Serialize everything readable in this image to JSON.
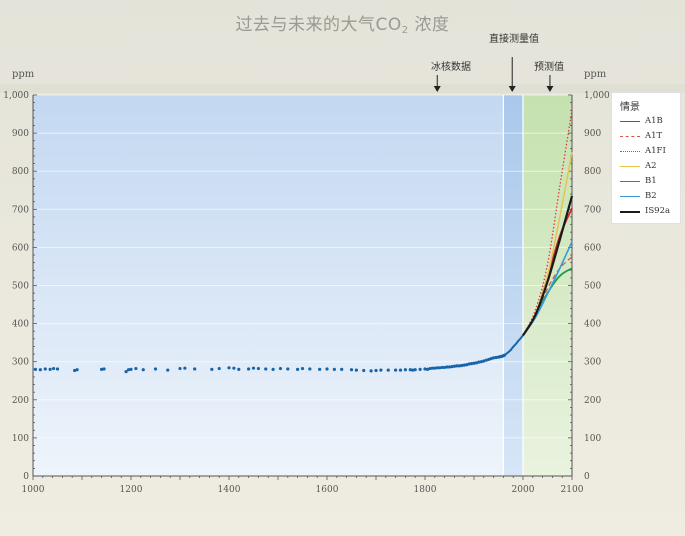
{
  "title": {
    "main": "过去与未来的大气CO",
    "sub": "2",
    "suffix": " 浓度"
  },
  "annotations": {
    "ice_core": "冰核数据",
    "direct": "直接测量值",
    "forecast": "预测值"
  },
  "chart_data": {
    "type": "line",
    "title": "过去与未来的大气CO2 浓度",
    "ylabel_left": "ppm",
    "ylabel_right": "ppm",
    "xlim": [
      1000,
      2100
    ],
    "ylim": [
      0,
      1000
    ],
    "x_ticks": [
      "1000",
      "1200",
      "1400",
      "1600",
      "1800",
      "2000",
      "2100"
    ],
    "y_ticks": [
      "0",
      "100",
      "200",
      "300",
      "400",
      "500",
      "600",
      "700",
      "800",
      "900",
      "1,000"
    ],
    "y_ticks_right": [
      "0",
      "100",
      "200",
      "300",
      "400",
      "500",
      "600",
      "700",
      "800",
      "900",
      "1,000"
    ],
    "regions": [
      {
        "label": "冰核数据",
        "x_range": [
          1000,
          1960
        ],
        "color": "#c8dcf2"
      },
      {
        "label": "直接测量值",
        "x_range": [
          1960,
          2000
        ],
        "color": "#aac9ec"
      },
      {
        "label": "预测值",
        "x_range": [
          2000,
          2100
        ],
        "color": "#c5e2b0"
      }
    ],
    "ice_core_points": [
      [
        1005,
        280
      ],
      [
        1015,
        279
      ],
      [
        1025,
        281
      ],
      [
        1035,
        280
      ],
      [
        1042,
        282
      ],
      [
        1050,
        281
      ],
      [
        1085,
        277
      ],
      [
        1090,
        279
      ],
      [
        1140,
        280
      ],
      [
        1145,
        281
      ],
      [
        1190,
        274
      ],
      [
        1195,
        279
      ],
      [
        1200,
        280
      ],
      [
        1210,
        282
      ],
      [
        1225,
        279
      ],
      [
        1250,
        281
      ],
      [
        1275,
        278
      ],
      [
        1300,
        282
      ],
      [
        1310,
        283
      ],
      [
        1330,
        281
      ],
      [
        1365,
        280
      ],
      [
        1380,
        282
      ],
      [
        1400,
        284
      ],
      [
        1410,
        283
      ],
      [
        1420,
        280
      ],
      [
        1440,
        281
      ],
      [
        1450,
        283
      ],
      [
        1460,
        282
      ],
      [
        1475,
        281
      ],
      [
        1490,
        280
      ],
      [
        1505,
        282
      ],
      [
        1520,
        281
      ],
      [
        1540,
        280
      ],
      [
        1550,
        282
      ],
      [
        1565,
        281
      ],
      [
        1585,
        280
      ],
      [
        1600,
        281
      ],
      [
        1615,
        280
      ],
      [
        1630,
        280
      ],
      [
        1650,
        279
      ],
      [
        1660,
        278
      ],
      [
        1675,
        277
      ],
      [
        1690,
        276
      ],
      [
        1700,
        277
      ],
      [
        1710,
        278
      ],
      [
        1725,
        278
      ],
      [
        1740,
        278
      ],
      [
        1750,
        278
      ],
      [
        1760,
        279
      ],
      [
        1770,
        279
      ],
      [
        1775,
        278
      ],
      [
        1780,
        279
      ],
      [
        1790,
        280
      ],
      [
        1800,
        281
      ],
      [
        1805,
        280
      ],
      [
        1810,
        282
      ],
      [
        1815,
        283
      ],
      [
        1820,
        283
      ],
      [
        1825,
        284
      ],
      [
        1830,
        284
      ],
      [
        1835,
        285
      ],
      [
        1840,
        285
      ],
      [
        1845,
        286
      ],
      [
        1850,
        286
      ],
      [
        1855,
        287
      ],
      [
        1860,
        288
      ],
      [
        1865,
        289
      ],
      [
        1870,
        289
      ],
      [
        1875,
        290
      ],
      [
        1880,
        291
      ],
      [
        1885,
        292
      ],
      [
        1890,
        294
      ],
      [
        1895,
        295
      ],
      [
        1900,
        296
      ],
      [
        1905,
        297
      ],
      [
        1910,
        299
      ],
      [
        1915,
        300
      ],
      [
        1920,
        302
      ],
      [
        1925,
        304
      ],
      [
        1930,
        306
      ],
      [
        1935,
        308
      ],
      [
        1940,
        310
      ],
      [
        1945,
        311
      ],
      [
        1950,
        312
      ],
      [
        1953,
        313
      ],
      [
        1956,
        314
      ],
      [
        1959,
        315
      ],
      [
        1962,
        317
      ]
    ],
    "direct_measurement": {
      "x": [
        1958,
        1965,
        1970,
        1975,
        1980,
        1985,
        1990,
        1995,
        2000
      ],
      "y": [
        315,
        320,
        325,
        331,
        339,
        346,
        354,
        361,
        369
      ]
    },
    "series": [
      {
        "name": "A1B",
        "color": "#c62f2f",
        "style": "solid",
        "x": [
          2000,
          2025,
          2050,
          2075,
          2100
        ],
        "y": [
          369,
          420,
          522,
          630,
          703
        ]
      },
      {
        "name": "A1T",
        "color": "#d35a4a",
        "style": "dashed",
        "x": [
          2000,
          2025,
          2050,
          2075,
          2100
        ],
        "y": [
          369,
          421,
          492,
          545,
          575
        ]
      },
      {
        "name": "A1FI",
        "color": "#e03a3a",
        "style": "dotted",
        "x": [
          2000,
          2025,
          2050,
          2075,
          2100
        ],
        "y": [
          369,
          435,
          555,
          760,
          960
        ]
      },
      {
        "name": "A2",
        "color": "#e8c24a",
        "style": "solid",
        "x": [
          2000,
          2025,
          2050,
          2075,
          2100
        ],
        "y": [
          369,
          425,
          525,
          680,
          850
        ]
      },
      {
        "name": "B1",
        "color": "#1f9a4a",
        "style": "solid",
        "x": [
          2000,
          2025,
          2050,
          2075,
          2100
        ],
        "y": [
          369,
          418,
          480,
          525,
          545
        ]
      },
      {
        "name": "B2",
        "color": "#3a9ad8",
        "style": "solid",
        "x": [
          2000,
          2025,
          2050,
          2075,
          2100
        ],
        "y": [
          369,
          415,
          478,
          545,
          615
        ]
      },
      {
        "name": "IS92a",
        "color": "#1a1a1a",
        "style": "solid",
        "x": [
          2000,
          2025,
          2050,
          2075,
          2100
        ],
        "y": [
          369,
          422,
          510,
          620,
          735
        ]
      }
    ],
    "legend_title": "情景",
    "legend_position": "right"
  }
}
